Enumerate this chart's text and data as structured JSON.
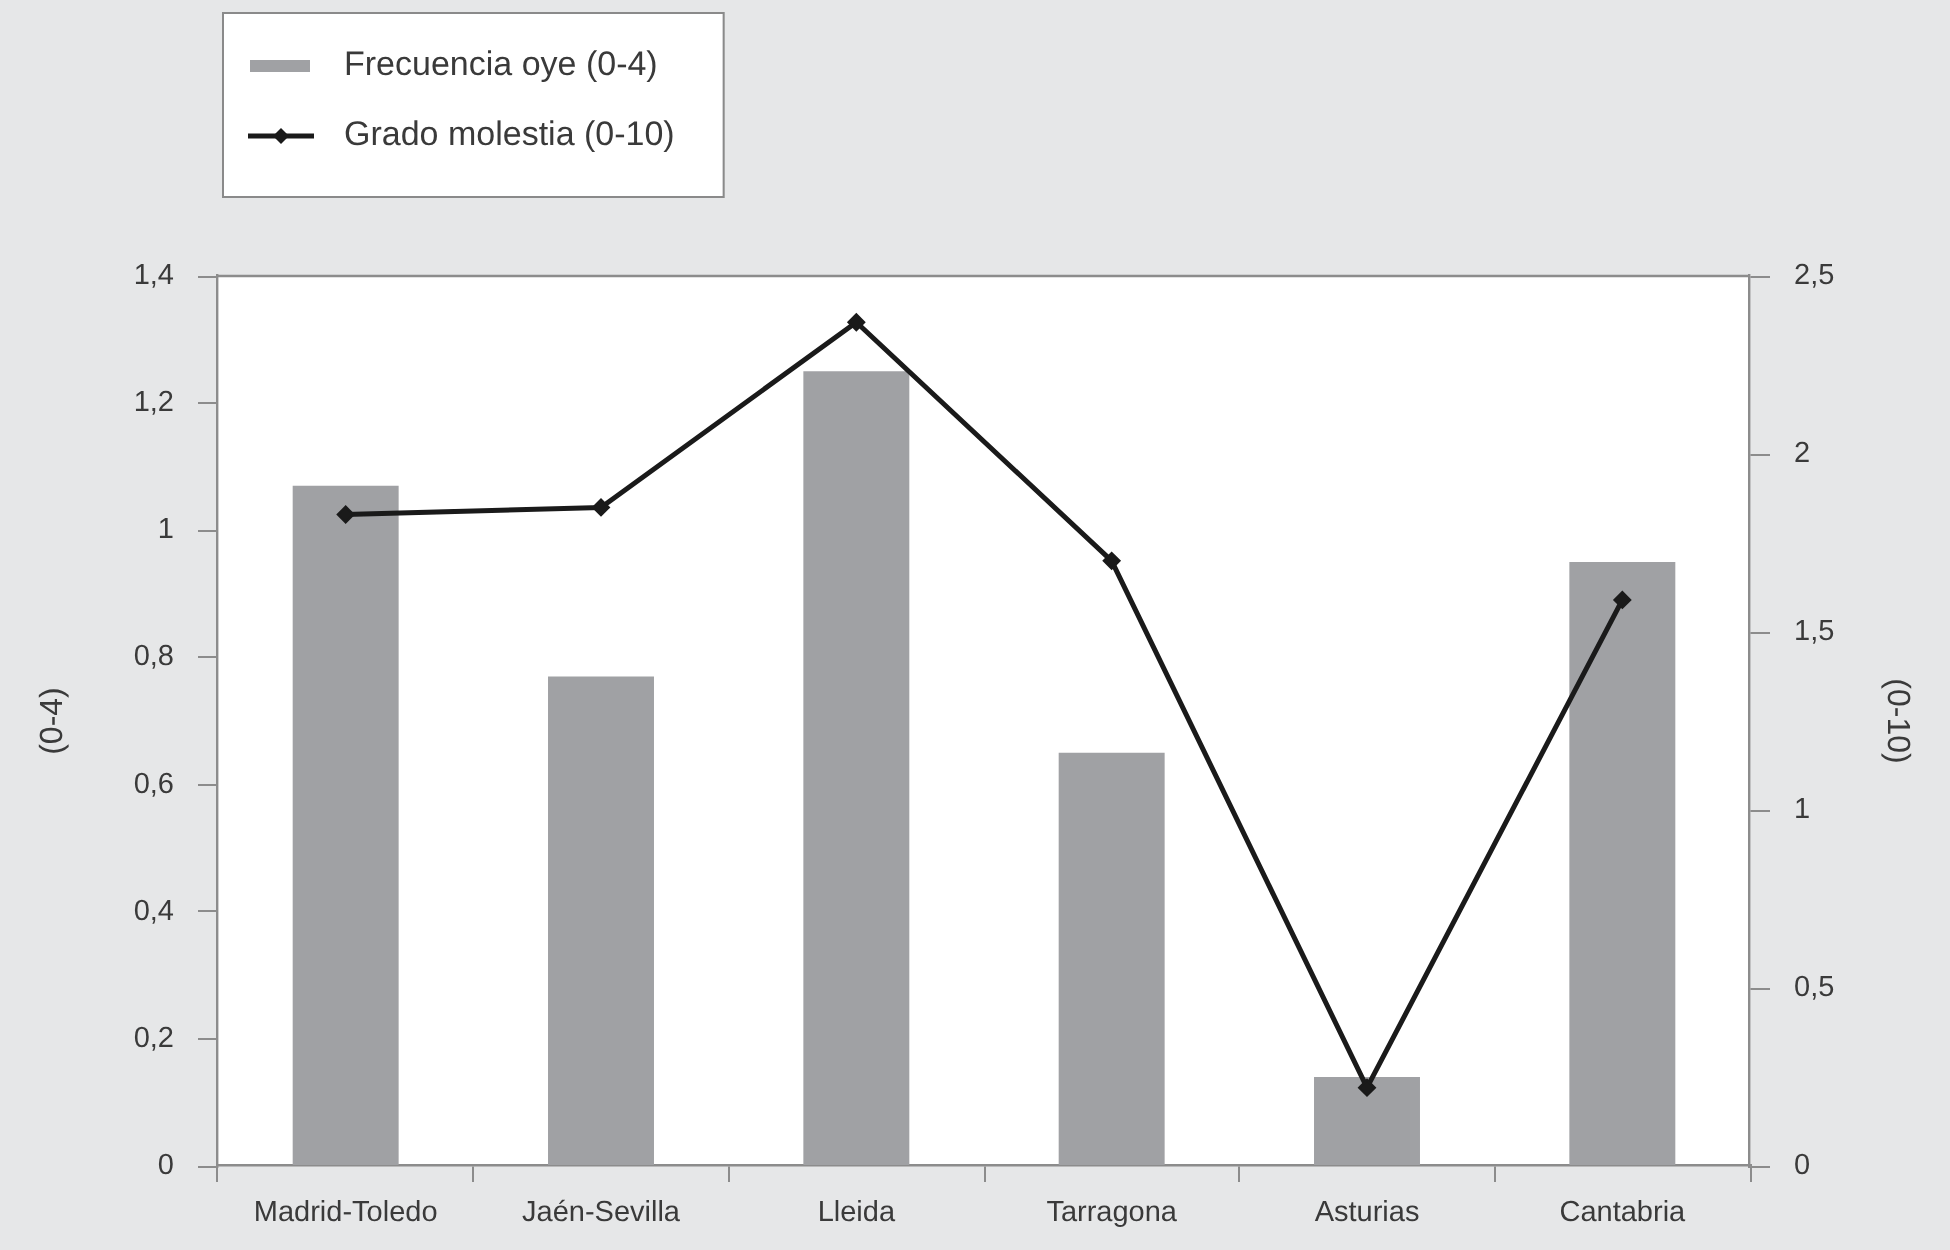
{
  "chart_data": {
    "type": "bar",
    "categories": [
      "Madrid-Toledo",
      "Jaén-Sevilla",
      "Lleida",
      "Tarragona",
      "Asturias",
      "Cantabria"
    ],
    "ylabel": "(0-4)",
    "y2label": "(0-10)",
    "ylim": [
      0,
      1.4
    ],
    "yticks": [
      0,
      {
        "value": 0.2,
        "label": "0,2"
      },
      {
        "value": 0.4,
        "label": "0,4"
      },
      {
        "value": 0.6,
        "label": "0,6"
      },
      {
        "value": 0.8,
        "label": "0,8"
      },
      1,
      {
        "value": 1.2,
        "label": "1,2"
      },
      {
        "value": 1.4,
        "label": "1,4"
      }
    ],
    "y2lim": [
      0,
      2.5
    ],
    "y2ticks": [
      0,
      {
        "value": 0.5,
        "label": "0,5"
      },
      1,
      {
        "value": 1.5,
        "label": "1,5"
      },
      2,
      {
        "value": 2.5,
        "label": "2,5"
      }
    ],
    "series": [
      {
        "name": "Frecuencia oye (0-4)",
        "color": "#a0a1a4",
        "values": [
          1.07,
          0.77,
          1.25,
          0.65,
          0.14,
          0.95
        ]
      },
      {
        "name": "Grado molestia (0-10)",
        "type": "line",
        "axis": "y2",
        "color": "#1a1a1a",
        "values": [
          1.83,
          1.85,
          2.37,
          1.7,
          0.22,
          1.59
        ]
      }
    ],
    "legend": "top left",
    "grid": false,
    "marker": "diamond",
    "line_style": "solid"
  }
}
